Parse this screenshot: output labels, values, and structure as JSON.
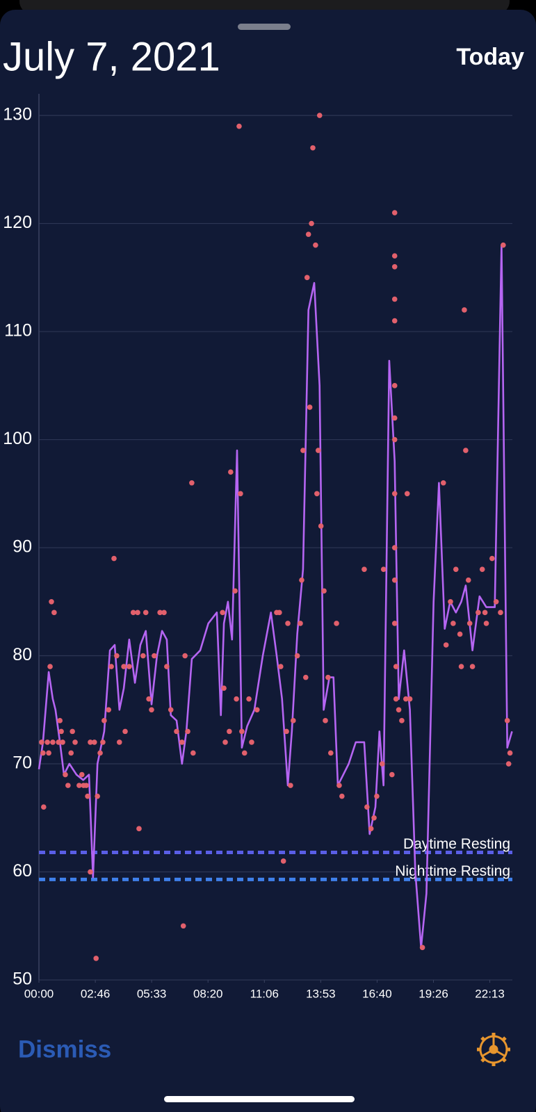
{
  "header": {
    "title": "July 7, 2021",
    "button": "Today"
  },
  "chart_data": {
    "type": "scatter",
    "xlim": [
      0,
      1400
    ],
    "ylim": [
      50,
      132
    ],
    "yticks": [
      50,
      60,
      70,
      80,
      90,
      100,
      110,
      120,
      130
    ],
    "xticks": [
      {
        "value": 0,
        "label": "00:00"
      },
      {
        "value": 166.7,
        "label": "02:46"
      },
      {
        "value": 333.3,
        "label": "05:33"
      },
      {
        "value": 500,
        "label": "08:20"
      },
      {
        "value": 666.7,
        "label": "11:06"
      },
      {
        "value": 833.3,
        "label": "13:53"
      },
      {
        "value": 1000,
        "label": "16:40"
      },
      {
        "value": 1166.7,
        "label": "19:26"
      },
      {
        "value": 1333.3,
        "label": "22:13"
      }
    ],
    "grid": true,
    "reference_lines": [
      {
        "label": "Daytime Resting",
        "value": 61.8,
        "color": "#5a5ee6"
      },
      {
        "label": "Nighttime Resting",
        "value": 59.3,
        "color": "#3f80ea"
      }
    ],
    "series": [
      {
        "type": "line",
        "color": "#b565f2",
        "x": [
          0,
          12,
          29,
          41,
          49,
          62,
          74,
          90,
          111,
          131,
          148,
          160,
          173,
          193,
          210,
          224,
          238,
          251,
          267,
          284,
          300,
          316,
          333,
          349,
          364,
          378,
          390,
          407,
          423,
          436,
          452,
          477,
          501,
          526,
          538,
          547,
          559,
          571,
          586,
          600,
          616,
          637,
          662,
          686,
          703,
          719,
          736,
          748,
          764,
          781,
          797,
          814,
          830,
          842,
          859,
          871,
          884,
          900,
          916,
          937,
          962,
          978,
          995,
          1007,
          1019,
          1036,
          1052,
          1064,
          1080,
          1097,
          1113,
          1130,
          1146,
          1167,
          1183,
          1200,
          1216,
          1233,
          1249,
          1262,
          1282,
          1303,
          1323,
          1348,
          1368,
          1385,
          1399
        ],
        "values": [
          69.5,
          72,
          78.5,
          76,
          75,
          72,
          69,
          70,
          69,
          68.5,
          69,
          59.5,
          70,
          73,
          80.5,
          81,
          75,
          77,
          81.5,
          77.5,
          81,
          82.3,
          75.5,
          80,
          82.3,
          81.5,
          74.5,
          74,
          70,
          73,
          79.7,
          80.5,
          83,
          84,
          74.5,
          83,
          85,
          81.5,
          99,
          71.5,
          73.5,
          75,
          80,
          84,
          80,
          76,
          68,
          73,
          82,
          88,
          112,
          114.5,
          105,
          75,
          78,
          78,
          68,
          69,
          70,
          72,
          72,
          63.5,
          66,
          73,
          68,
          107.3,
          98,
          76,
          80.5,
          75,
          60,
          53,
          58,
          85,
          96,
          82.5,
          85,
          84,
          85,
          86.5,
          80.5,
          85.5,
          84.5,
          84.5,
          118,
          71.5,
          73
        ]
      },
      {
        "type": "scatter",
        "color": "#e2606c",
        "x": [
          8,
          12,
          14,
          25,
          29,
          33,
          37,
          45,
          41,
          58,
          62,
          66,
          70,
          78,
          86,
          95,
          99,
          107,
          119,
          127,
          132,
          140,
          144,
          152,
          152,
          164,
          173,
          169,
          181,
          189,
          193,
          206,
          214,
          222,
          230,
          238,
          251,
          255,
          267,
          279,
          292,
          296,
          308,
          316,
          325,
          333,
          341,
          358,
          370,
          378,
          390,
          407,
          423,
          427,
          432,
          440,
          452,
          456,
          543,
          547,
          551,
          563,
          567,
          580,
          584,
          592,
          596,
          600,
          608,
          621,
          629,
          645,
          703,
          711,
          715,
          723,
          732,
          736,
          744,
          752,
          764,
          773,
          777,
          781,
          789,
          793,
          797,
          801,
          806,
          810,
          818,
          822,
          826,
          830,
          834,
          843,
          847,
          855,
          863,
          880,
          888,
          896,
          962,
          970,
          982,
          991,
          999,
          1015,
          1019,
          1044,
          1052,
          1052,
          1052,
          1052,
          1052,
          1052,
          1052,
          1052,
          1052,
          1052,
          1052,
          1052,
          1056,
          1056,
          1064,
          1073,
          1085,
          1089,
          1097,
          1134,
          1196,
          1204,
          1217,
          1225,
          1233,
          1245,
          1249,
          1258,
          1262,
          1270,
          1274,
          1282,
          1299,
          1311,
          1319,
          1323,
          1340,
          1352,
          1365,
          1373,
          1385,
          1389,
          1393
        ],
        "values": [
          72,
          71,
          66,
          72,
          71,
          79,
          85,
          84,
          72,
          72,
          74,
          73,
          72,
          69,
          68,
          71,
          73,
          72,
          68,
          69,
          68,
          68,
          67,
          72,
          60,
          72,
          67,
          52,
          71,
          72,
          74,
          75,
          79,
          89,
          80,
          72,
          79,
          73,
          79,
          84,
          84,
          64,
          80,
          84,
          76,
          75,
          80,
          84,
          84,
          79,
          75,
          73,
          72,
          55,
          80,
          73,
          96,
          71,
          84,
          77,
          72,
          73,
          97,
          86,
          76,
          129,
          95,
          73,
          71,
          76,
          72,
          75,
          84,
          84,
          79,
          61,
          73,
          83,
          68,
          74,
          80,
          83,
          87,
          99,
          78,
          115,
          119,
          103,
          120,
          127,
          118,
          95,
          99,
          130,
          92,
          86,
          74,
          78,
          71,
          83,
          68,
          67,
          88,
          66,
          64,
          65,
          67,
          70,
          88,
          69,
          121,
          117,
          116,
          113,
          111,
          105,
          102,
          100,
          95,
          90,
          87,
          83,
          79,
          76,
          75,
          74,
          76,
          95,
          76,
          53,
          96,
          81,
          85,
          83,
          88,
          82,
          79,
          112,
          99,
          87,
          83,
          79,
          84,
          88,
          84,
          83,
          89,
          85,
          84,
          118,
          74,
          70,
          71
        ]
      }
    ]
  },
  "footer": {
    "button": "Dismiss"
  }
}
